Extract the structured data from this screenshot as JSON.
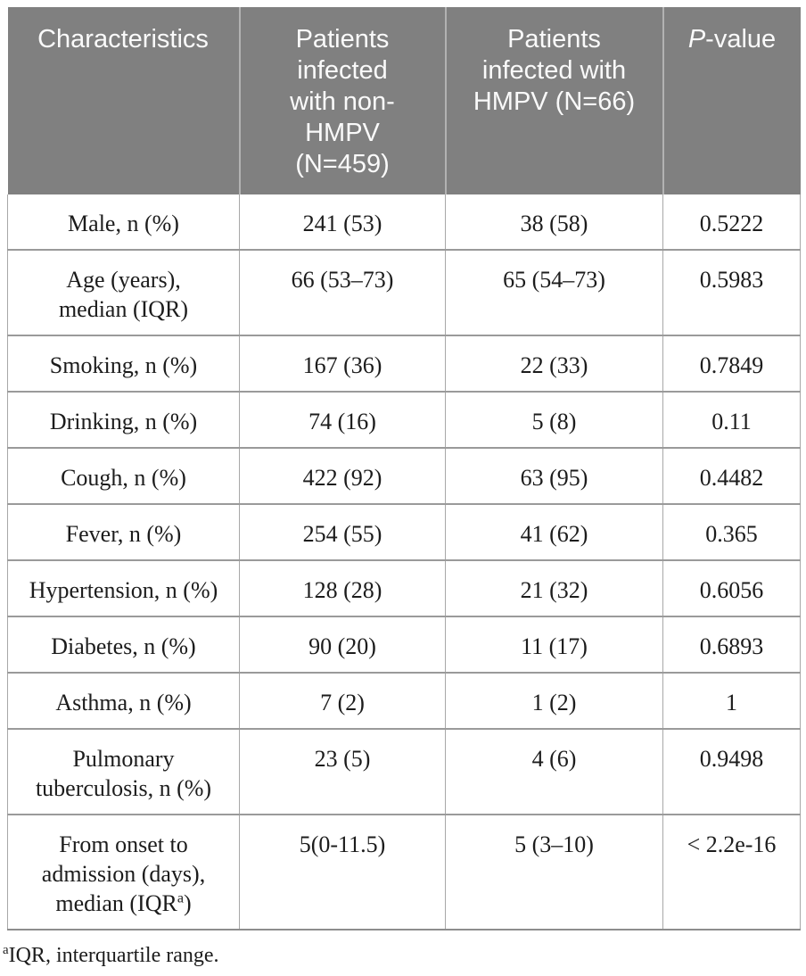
{
  "theme": {
    "page_bg": "#ffffff",
    "header_bg": "#808080",
    "header_text": "#fafafa",
    "body_text": "#1c1c1c",
    "border_row": "#9a9a9a",
    "border_col": "#a8a8a8",
    "border_bottom": "#8d8d8d",
    "header_divider": "#b2b2b2"
  },
  "table": {
    "header": {
      "columns": [
        {
          "label": "Characteristics"
        },
        {
          "label": "Patients\ninfected\nwith non-\nHMPV\n(N=459)"
        },
        {
          "label": "Patients\ninfected with\nHMPV (N=66)"
        },
        {
          "label_italic": "P",
          "label": "-value"
        }
      ]
    },
    "rows": [
      {
        "label": "Male, n (%)",
        "non_hmpv": "241 (53)",
        "hmpv": "38 (58)",
        "p_value": "0.5222"
      },
      {
        "label": "Age (years),\nmedian (IQR)",
        "non_hmpv": "66 (53–73)",
        "hmpv": "65 (54–73)",
        "p_value": "0.5983"
      },
      {
        "label": "Smoking, n (%)",
        "non_hmpv": "167 (36)",
        "hmpv": "22 (33)",
        "p_value": "0.7849"
      },
      {
        "label": "Drinking, n (%)",
        "non_hmpv": "74 (16)",
        "hmpv": "5 (8)",
        "p_value": "0.11"
      },
      {
        "label": "Cough, n (%)",
        "non_hmpv": "422 (92)",
        "hmpv": "63 (95)",
        "p_value": "0.4482"
      },
      {
        "label": "Fever, n (%)",
        "non_hmpv": "254 (55)",
        "hmpv": "41 (62)",
        "p_value": "0.365"
      },
      {
        "label": "Hypertension, n (%)",
        "non_hmpv": "128 (28)",
        "hmpv": "21 (32)",
        "p_value": "0.6056"
      },
      {
        "label": "Diabetes, n (%)",
        "non_hmpv": "90 (20)",
        "hmpv": "11 (17)",
        "p_value": "0.6893"
      },
      {
        "label": "Asthma, n (%)",
        "non_hmpv": "7 (2)",
        "hmpv": "1 (2)",
        "p_value": "1"
      },
      {
        "label": "Pulmonary\ntuberculosis, n (%)",
        "non_hmpv": "23 (5)",
        "hmpv": "4 (6)",
        "p_value": "0.9498"
      },
      {
        "label": "From onset to\nadmission (days),\nmedian (IQR",
        "label_sup": "a",
        "label_after_sup": ")",
        "non_hmpv": "5(0-11.5)",
        "hmpv": "5 (3–10)",
        "p_value": "< 2.2e-16"
      }
    ]
  },
  "footnote": {
    "sup": "a",
    "text": "IQR, interquartile range."
  }
}
